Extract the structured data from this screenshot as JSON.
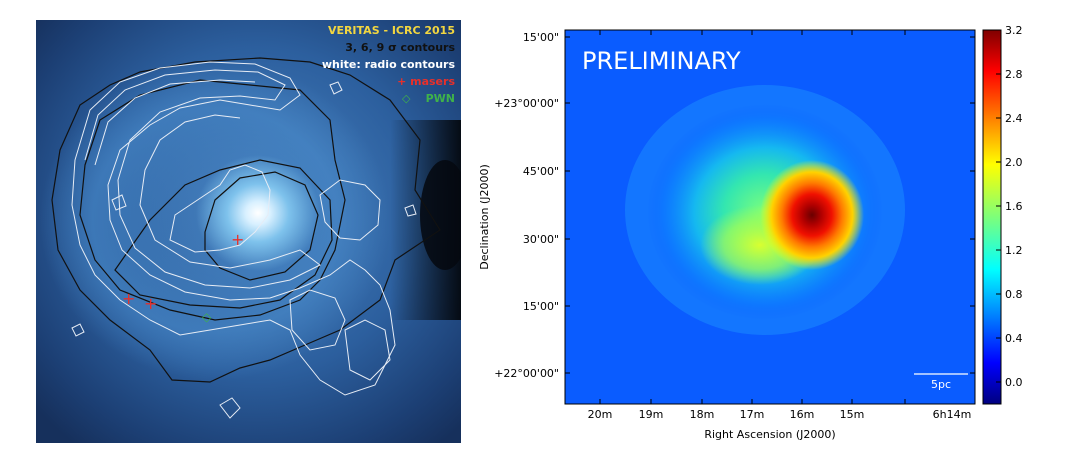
{
  "left_map": {
    "legend": {
      "title": "VERITAS - ICRC 2015",
      "contours_line": "3, 6, 9 σ contours",
      "radio_line": "white: radio contours",
      "masers_line": "+ masers",
      "pwn_label": "PWN"
    },
    "colors": {
      "title": "#f2d640",
      "contours": "#111111",
      "radio": "#ffffff",
      "masers": "#e8302a",
      "pwn": "#3fb24a"
    },
    "markers": {
      "masers": [
        "+",
        "+",
        "+"
      ],
      "pwn": "◇"
    }
  },
  "chart_data": {
    "type": "heatmap",
    "title": "",
    "annotation": "PRELIMINARY",
    "xlabel": "Right Ascension (J2000)",
    "ylabel": "Declination (J2000)",
    "x_ticks": [
      "20m",
      "19m",
      "18m",
      "17m",
      "16m",
      "15m",
      "6h14m"
    ],
    "y_ticks": [
      "15'00\"",
      "+23°00'00\"",
      "45'00\"",
      "30'00\"",
      "15'00\"",
      "+22°00'00\""
    ],
    "colorbar": {
      "ticks": [
        "3.2",
        "2.8",
        "2.4",
        "2.0",
        "1.6",
        "1.2",
        "0.8",
        "0.4",
        "0.0"
      ],
      "range": [
        -0.2,
        3.2
      ],
      "colormap": "jet"
    },
    "scale_bar_label": "5pc",
    "peak": {
      "ra": "~16m30s",
      "dec": "~+22°35'",
      "value": 3.2
    }
  }
}
